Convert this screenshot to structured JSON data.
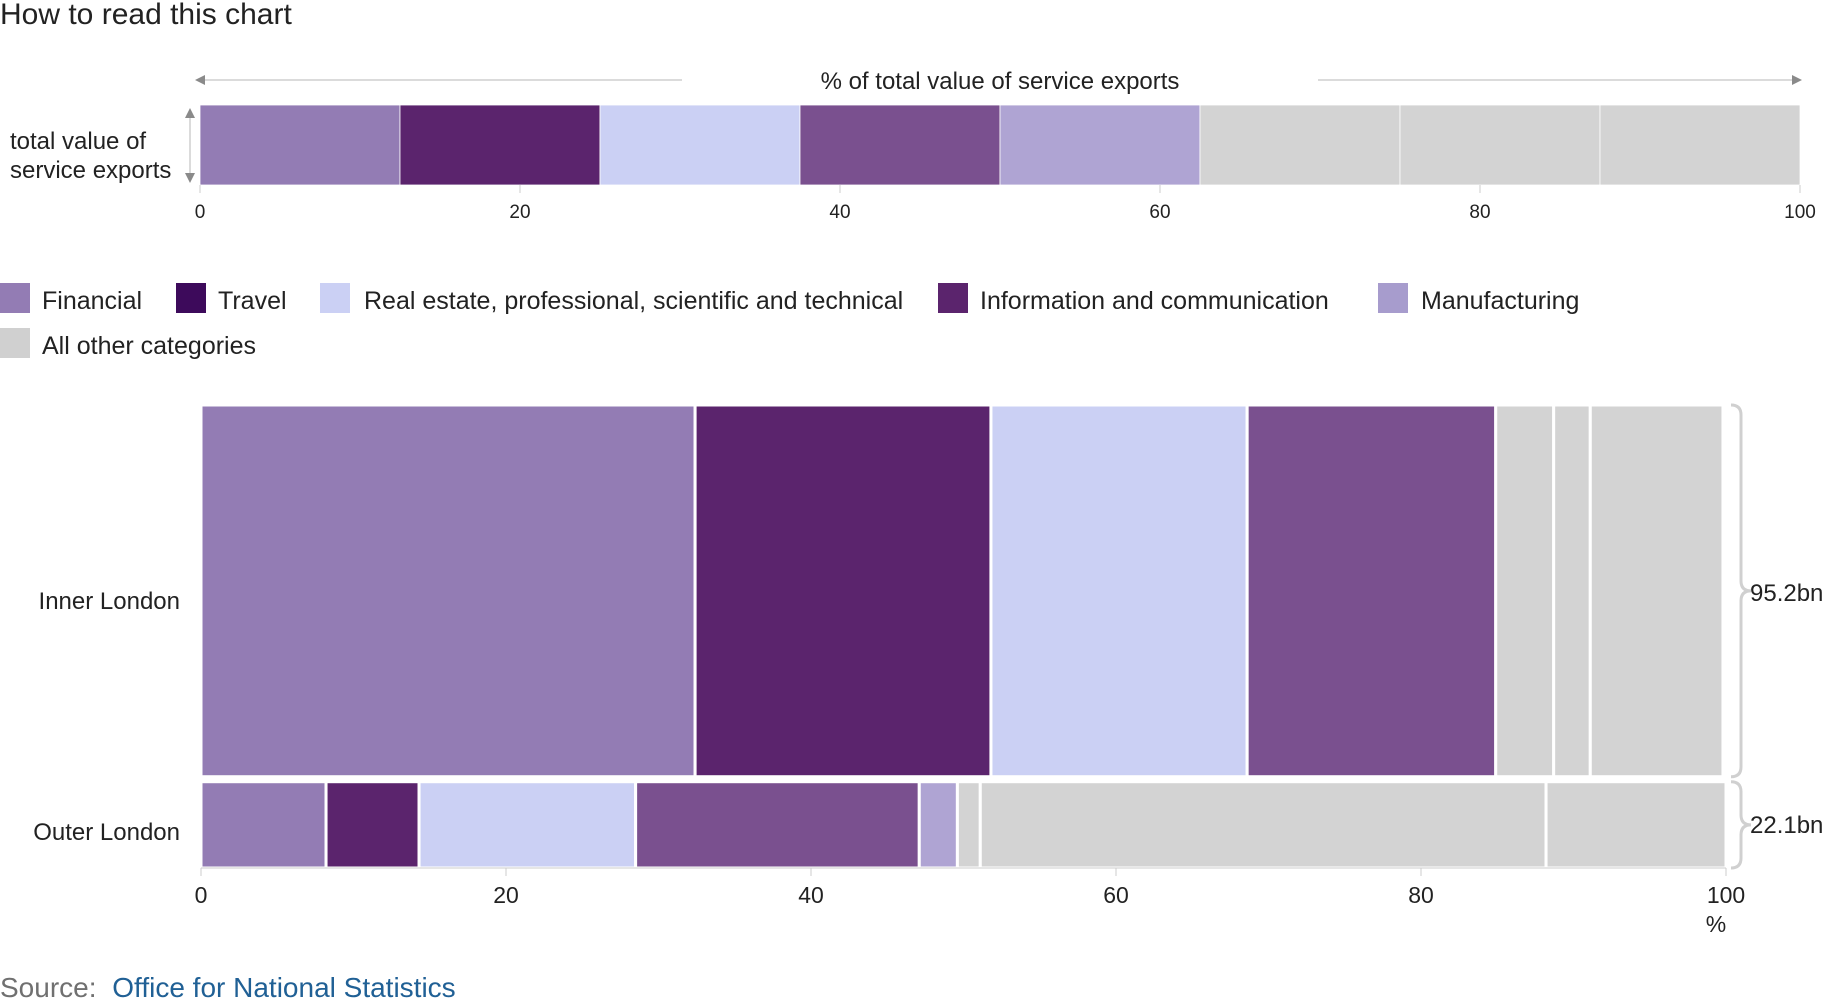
{
  "guide": {
    "title": "How to read this chart",
    "x_label": "% of total value of service exports",
    "y_label_lines": [
      "total value of",
      "service exports"
    ]
  },
  "legend": [
    {
      "name": "Financial",
      "color": "#937cb4"
    },
    {
      "name": "Travel",
      "color": "#3d0a5b"
    },
    {
      "name": "Real estate, professional, scientific and technical",
      "color": "#cbd0f4"
    },
    {
      "name": "Information and communication",
      "color": "#5b246d"
    },
    {
      "name": "Manufacturing",
      "color": "#a79ccd"
    },
    {
      "name": "All other categories",
      "color": "#d0d0d0"
    }
  ],
  "source": {
    "label": "Source:",
    "link_text": "Office for National Statistics"
  },
  "chart_data": [
    {
      "type": "bar",
      "title": "How to read this chart",
      "xlabel": "% of total value of service exports",
      "ylabel": "total value of service exports",
      "xlim": [
        0,
        100
      ],
      "xticks": [
        "0",
        "20",
        "40",
        "60",
        "80",
        "100"
      ],
      "segments": [
        {
          "value": 12.5,
          "color": "#937cb4"
        },
        {
          "value": 12.5,
          "color": "#5b246d"
        },
        {
          "value": 12.5,
          "color": "#cbd0f4"
        },
        {
          "value": 12.5,
          "color": "#7a508f"
        },
        {
          "value": 12.5,
          "color": "#afa4d3"
        },
        {
          "value": 12.5,
          "color": "#d3d3d3"
        },
        {
          "value": 12.5,
          "color": "#d3d3d3"
        },
        {
          "value": 12.5,
          "color": "#d3d3d3"
        }
      ]
    },
    {
      "type": "bar",
      "subtype": "marimekko",
      "xlim": [
        0,
        100
      ],
      "xticks": [
        "0",
        "20",
        "40",
        "60",
        "80",
        "100"
      ],
      "xunit": "%",
      "categories": [
        "Inner London",
        "Outer London"
      ],
      "totals": [
        "95.2bn",
        "22.1bn"
      ],
      "total_values": [
        95.2,
        22.1
      ],
      "series": [
        {
          "category": "Inner London",
          "segments": [
            {
              "group": "Financial",
              "value": 32.4,
              "color": "#937cb4"
            },
            {
              "group": "Travel",
              "value": 19.4,
              "color": "#5b246d"
            },
            {
              "group": "Real estate, professional, scientific and technical",
              "value": 16.8,
              "color": "#cbd0f4"
            },
            {
              "group": "Information and communication",
              "value": 16.3,
              "color": "#7a508f"
            },
            {
              "group": "All other categories",
              "value": 3.8,
              "color": "#d3d3d3"
            },
            {
              "group": "All other categories",
              "value": 2.4,
              "color": "#d3d3d3"
            },
            {
              "group": "All other categories",
              "value": 8.7,
              "color": "#d3d3d3"
            }
          ]
        },
        {
          "category": "Outer London",
          "segments": [
            {
              "group": "Financial",
              "value": 8.2,
              "color": "#937cb4"
            },
            {
              "group": "Travel",
              "value": 6.1,
              "color": "#5b246d"
            },
            {
              "group": "Real estate, professional, scientific and technical",
              "value": 14.2,
              "color": "#cbd0f4"
            },
            {
              "group": "Information and communication",
              "value": 18.6,
              "color": "#7a508f"
            },
            {
              "group": "Manufacturing",
              "value": 2.5,
              "color": "#afa4d3"
            },
            {
              "group": "All other categories",
              "value": 1.5,
              "color": "#d3d3d3"
            },
            {
              "group": "All other categories",
              "value": 37.1,
              "color": "#d3d3d3"
            },
            {
              "group": "All other categories",
              "value": 11.8,
              "color": "#d3d3d3"
            }
          ]
        }
      ]
    }
  ]
}
